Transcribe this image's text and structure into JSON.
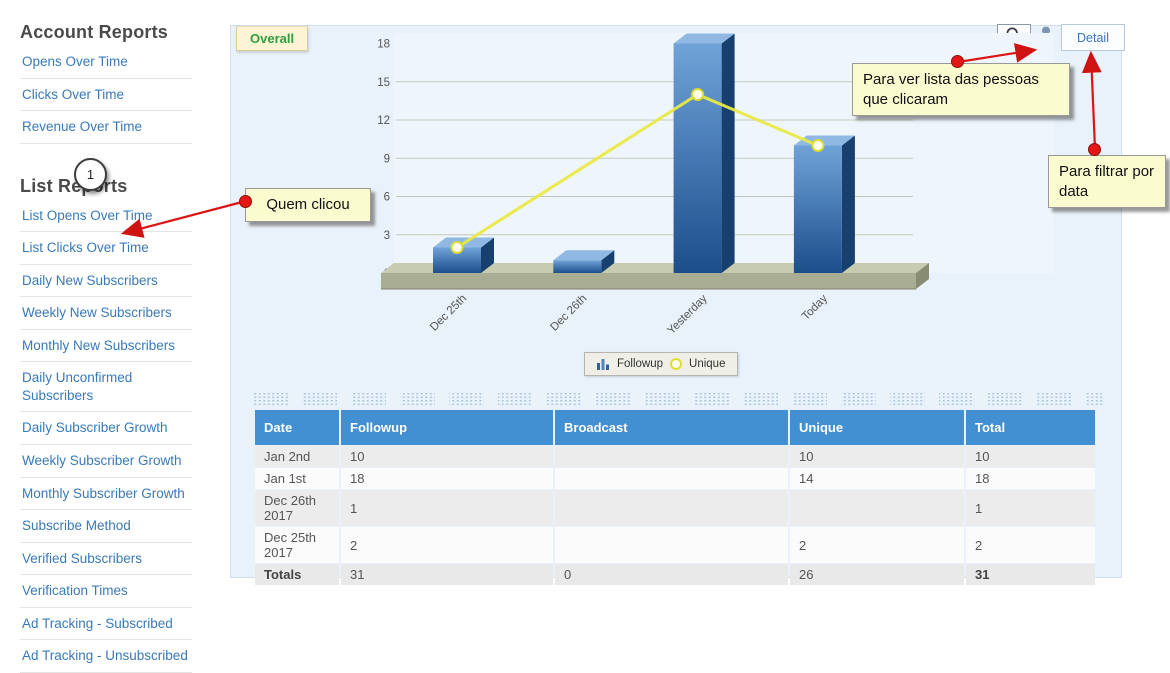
{
  "sidebar": {
    "badge": "1",
    "sections": [
      {
        "title": "Account Reports",
        "items": [
          "Opens Over Time",
          "Clicks Over Time",
          "Revenue Over Time"
        ]
      },
      {
        "title": "List Reports",
        "items": [
          "List Opens Over Time",
          "List Clicks Over Time",
          "Daily New Subscribers",
          "Weekly New Subscribers",
          "Monthly New Subscribers",
          "Daily Unconfirmed Subscribers",
          "Daily Subscriber Growth",
          "Weekly Subscriber Growth",
          "Monthly Subscriber Growth",
          "Subscribe Method",
          "Verified Subscribers",
          "Verification Times",
          "Ad Tracking - Subscribed",
          "Ad Tracking - Unsubscribed"
        ]
      }
    ]
  },
  "panel": {
    "tab_label": "Overall",
    "toolbar": {
      "search_icon": "magnifier-icon",
      "person_icon": "person-icon",
      "detail_label": "Detail"
    }
  },
  "annotations": [
    {
      "text": "Quem clicou"
    },
    {
      "text": "Para ver lista das pessoas que clicaram"
    },
    {
      "text": "Para filtrar por data"
    }
  ],
  "chart_data": {
    "type": "bar",
    "subtype": "3d-bar-with-line-overlay",
    "categories": [
      "Dec 25th",
      "Dec 26th",
      "Yesterday",
      "Today"
    ],
    "series": [
      {
        "name": "Followup",
        "type": "bar",
        "values": [
          2,
          1,
          18,
          10
        ]
      },
      {
        "name": "Unique",
        "type": "line",
        "values": [
          2,
          null,
          14,
          10
        ]
      }
    ],
    "title": "",
    "xlabel": "",
    "ylabel": "",
    "ylim": [
      0,
      18
    ],
    "yticks": [
      0,
      3,
      6,
      9,
      12,
      15,
      18
    ],
    "grid": true,
    "legend_position": "bottom",
    "colors": {
      "bar": "#2a62a5",
      "bar_light": "#8fb9e3",
      "line": "#e9e943",
      "platform": "#a9ae93",
      "plot_bg": "#eff5fc"
    }
  },
  "table": {
    "columns": [
      "Date",
      "Followup",
      "Broadcast",
      "Unique",
      "Total"
    ],
    "rows": [
      [
        "Jan 2nd",
        "10",
        "",
        "10",
        "10"
      ],
      [
        "Jan 1st",
        "18",
        "",
        "14",
        "18"
      ],
      [
        "Dec 26th 2017",
        "1",
        "",
        "",
        "1"
      ],
      [
        "Dec 25th 2017",
        "2",
        "",
        "2",
        "2"
      ]
    ],
    "totals": [
      "Totals",
      "31",
      "0",
      "26",
      "31"
    ]
  }
}
